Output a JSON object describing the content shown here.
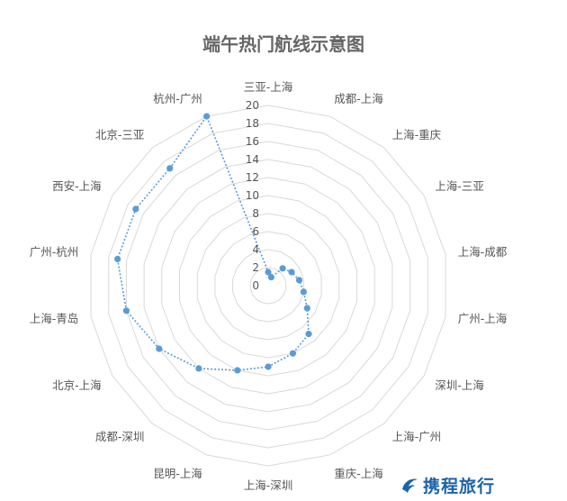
{
  "chart_data": {
    "type": "radar",
    "title": "端午热门航线示意图",
    "categories": [
      "三亚-上海",
      "成都-上海",
      "上海-重庆",
      "上海-三亚",
      "上海-成都",
      "广州-上海",
      "深圳-上海",
      "上海-广州",
      "重庆-上海",
      "上海-深圳",
      "昆明-上海",
      "成都-深圳",
      "北京-上海",
      "上海-青岛",
      "广州-杭州",
      "西安-上海",
      "北京-三亚",
      "杭州-广州"
    ],
    "values": [
      1.5,
      1,
      2.5,
      3,
      3.5,
      4,
      5,
      7,
      8,
      9,
      10,
      12,
      14,
      16,
      17,
      17,
      17,
      20
    ],
    "rlim": [
      0,
      20
    ],
    "ticks": [
      "0",
      "2",
      "4",
      "6",
      "8",
      "10",
      "12",
      "14",
      "16",
      "18",
      "20"
    ],
    "series_color": "#5b9bd5",
    "grid": true,
    "line_style": "dotted"
  },
  "watermark": {
    "text": "携程旅行",
    "color": "#1e63a8"
  }
}
